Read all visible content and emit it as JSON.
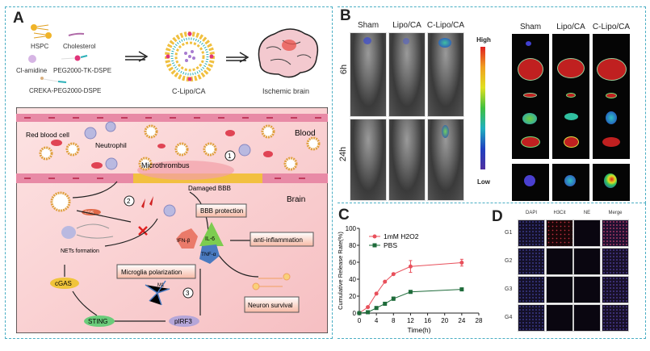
{
  "panels": {
    "a": "A",
    "b": "B",
    "c": "C",
    "d": "D"
  },
  "panel_a": {
    "components": [
      "HSPC",
      "Cholesterol",
      "Cl-amidine",
      "PEG2000-TK-DSPE",
      "CREKA-PEG2000-DSPE"
    ],
    "product": "C-Lipo/CA",
    "target": "Ischemic brain",
    "mechanism": {
      "red_blood_cell": "Red blood cell",
      "neutrophil": "Neutrophil",
      "blood": "Blood",
      "microthrombus": "Microthrombus",
      "damaged_bbb": "Damaged BBB",
      "brain": "Brain",
      "ros": "ROS",
      "step1": "1",
      "step2": "2",
      "step3": "3",
      "bbb_protection": "BBB protection",
      "il6": "IL-6",
      "ifnb": "IFN-β",
      "tnfa": "TNF-α",
      "anti_inflammation": "anti-inflammation",
      "nets": "NETs formation",
      "microglia": "Microglia polarization",
      "cgas": "cGAS",
      "m1": "M1",
      "neuron_survival": "Neuron survival",
      "sting": "STING",
      "pirf3": "pIRF3"
    }
  },
  "panel_b": {
    "groups": [
      "Sham",
      "Lipo/CA",
      "C-Lipo/CA"
    ],
    "timepoints": [
      "6h",
      "24h"
    ],
    "colorbar": {
      "high": "High",
      "low": "Low"
    }
  },
  "chart_data": {
    "type": "line",
    "xlabel": "Time(h)",
    "ylabel": "Cumulative Release Rate(%)",
    "xlim": [
      0,
      28
    ],
    "ylim": [
      0,
      100
    ],
    "xticks": [
      0,
      4,
      8,
      12,
      16,
      20,
      24,
      28
    ],
    "yticks": [
      0,
      20,
      40,
      60,
      80,
      100
    ],
    "legend": "top-left",
    "x": [
      0,
      2,
      4,
      6,
      8,
      12,
      24
    ],
    "series": [
      {
        "name": "1mM H2O2",
        "color": "#e8505b",
        "values": [
          0,
          7,
          23,
          37,
          46,
          55,
          59.5
        ],
        "errors": [
          0,
          1,
          1,
          1,
          1,
          7,
          4
        ]
      },
      {
        "name": "PBS",
        "color": "#1e6b3a",
        "values": [
          0,
          1,
          6,
          11,
          17,
          25,
          28
        ],
        "errors": [
          0,
          0,
          0,
          0,
          2,
          1,
          1
        ]
      }
    ]
  },
  "panel_d": {
    "channels": [
      "DAPI",
      "H3Cit",
      "NE",
      "Merge"
    ],
    "groups": [
      "G1",
      "G2",
      "G3",
      "G4"
    ]
  }
}
